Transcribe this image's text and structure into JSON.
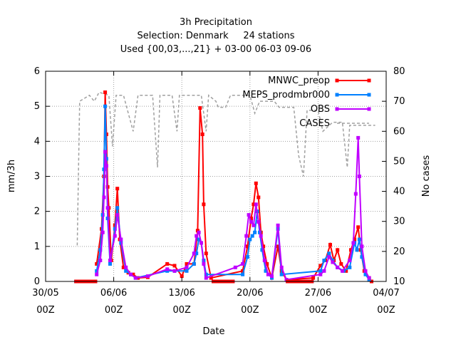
{
  "chart_data": {
    "type": "line",
    "title": [
      "3h Precipitation",
      "Selection: Denmark     24 stations",
      "Used {00,03,...,21} + 03-00 06-03 09-06"
    ],
    "xlabel": "Date",
    "ylabel": "mm/3h",
    "y2label": "No cases",
    "xlim": [
      "2022-05-30 00Z",
      "2022-07-04 00Z"
    ],
    "ylim": [
      0,
      6
    ],
    "y2lim": [
      10,
      80
    ],
    "xticks": [
      {
        "date": "2022-05-30",
        "l1": "30/05",
        "l2": "00Z"
      },
      {
        "date": "2022-06-06",
        "l1": "06/06",
        "l2": "00Z"
      },
      {
        "date": "2022-06-13",
        "l1": "13/06",
        "l2": "00Z"
      },
      {
        "date": "2022-06-20",
        "l1": "20/06",
        "l2": "00Z"
      },
      {
        "date": "2022-06-27",
        "l1": "27/06",
        "l2": "00Z"
      },
      {
        "date": "2022-07-04",
        "l1": "04/07",
        "l2": "00Z"
      }
    ],
    "yticks": [
      "0",
      "1",
      "2",
      "3",
      "4",
      "5",
      "6"
    ],
    "y2ticks": [
      "10",
      "20",
      "30",
      "40",
      "50",
      "60",
      "70",
      "80"
    ],
    "grid": true,
    "legend_position": "top-right",
    "series": [
      {
        "name": "MNWC_preop",
        "color": "#ff0000",
        "marker": "square",
        "axis": "left",
        "points": [
          [
            "2022-06-04 06Z",
            0.5
          ],
          [
            "2022-06-04 18Z",
            1.5
          ],
          [
            "2022-06-05 00Z",
            3.0
          ],
          [
            "2022-06-05 03Z",
            5.4
          ],
          [
            "2022-06-05 06Z",
            4.2
          ],
          [
            "2022-06-05 09Z",
            2.7
          ],
          [
            "2022-06-05 12Z",
            2.1
          ],
          [
            "2022-06-05 18Z",
            0.6
          ],
          [
            "2022-06-06 03Z",
            1.6
          ],
          [
            "2022-06-06 09Z",
            2.65
          ],
          [
            "2022-06-06 15Z",
            1.2
          ],
          [
            "2022-06-07 00Z",
            0.4
          ],
          [
            "2022-06-07 12Z",
            0.25
          ],
          [
            "2022-06-08 00Z",
            0.2
          ],
          [
            "2022-06-08 12Z",
            0.1
          ],
          [
            "2022-06-09 12Z",
            0.12
          ],
          [
            "2022-06-11 12Z",
            0.5
          ],
          [
            "2022-06-12 06Z",
            0.45
          ],
          [
            "2022-06-13 00Z",
            0.15
          ],
          [
            "2022-06-13 12Z",
            0.5
          ],
          [
            "2022-06-14 06Z",
            0.5
          ],
          [
            "2022-06-14 15Z",
            1.45
          ],
          [
            "2022-06-14 21Z",
            4.95
          ],
          [
            "2022-06-15 03Z",
            4.2
          ],
          [
            "2022-06-15 06Z",
            2.2
          ],
          [
            "2022-06-15 12Z",
            0.8
          ],
          [
            "2022-06-16 00Z",
            0.1
          ],
          [
            "2022-06-19 06Z",
            0.3
          ],
          [
            "2022-06-19 18Z",
            1.0
          ],
          [
            "2022-06-20 03Z",
            1.8
          ],
          [
            "2022-06-20 09Z",
            2.2
          ],
          [
            "2022-06-20 15Z",
            2.8
          ],
          [
            "2022-06-20 21Z",
            2.4
          ],
          [
            "2022-06-21 03Z",
            1.4
          ],
          [
            "2022-06-21 09Z",
            1.0
          ],
          [
            "2022-06-21 18Z",
            0.5
          ],
          [
            "2022-06-22 06Z",
            0.1
          ],
          [
            "2022-06-22 21Z",
            1.0
          ],
          [
            "2022-06-23 06Z",
            0.3
          ],
          [
            "2022-06-23 18Z",
            0.05
          ],
          [
            "2022-06-26 12Z",
            0.1
          ],
          [
            "2022-06-27 06Z",
            0.45
          ],
          [
            "2022-06-27 18Z",
            0.6
          ],
          [
            "2022-06-28 06Z",
            1.05
          ],
          [
            "2022-06-28 15Z",
            0.6
          ],
          [
            "2022-06-29 00Z",
            0.9
          ],
          [
            "2022-06-29 09Z",
            0.5
          ],
          [
            "2022-06-29 21Z",
            0.3
          ],
          [
            "2022-06-30 09Z",
            0.9
          ],
          [
            "2022-06-30 18Z",
            1.2
          ],
          [
            "2022-07-01 03Z",
            1.55
          ],
          [
            "2022-07-01 09Z",
            0.9
          ],
          [
            "2022-07-01 18Z",
            0.3
          ],
          [
            "2022-07-02 06Z",
            0.1
          ],
          [
            "2022-07-02 12Z",
            0.0
          ]
        ]
      },
      {
        "name": "MEPS_prodmbr000",
        "color": "#0080ff",
        "marker": "square",
        "axis": "left",
        "points": [
          [
            "2022-06-04 06Z",
            0.3
          ],
          [
            "2022-06-04 15Z",
            0.9
          ],
          [
            "2022-06-04 21Z",
            1.9
          ],
          [
            "2022-06-05 00Z",
            3.2
          ],
          [
            "2022-06-05 03Z",
            5.0
          ],
          [
            "2022-06-05 06Z",
            3.5
          ],
          [
            "2022-06-05 09Z",
            1.8
          ],
          [
            "2022-06-05 15Z",
            0.5
          ],
          [
            "2022-06-06 03Z",
            1.5
          ],
          [
            "2022-06-06 09Z",
            2.1
          ],
          [
            "2022-06-06 18Z",
            1.1
          ],
          [
            "2022-06-07 06Z",
            0.3
          ],
          [
            "2022-06-07 18Z",
            0.2
          ],
          [
            "2022-06-08 06Z",
            0.1
          ],
          [
            "2022-06-11 12Z",
            0.3
          ],
          [
            "2022-06-12 06Z",
            0.3
          ],
          [
            "2022-06-13 12Z",
            0.3
          ],
          [
            "2022-06-14 06Z",
            0.5
          ],
          [
            "2022-06-14 12Z",
            0.8
          ],
          [
            "2022-06-14 18Z",
            1.2
          ],
          [
            "2022-06-15 00Z",
            1.1
          ],
          [
            "2022-06-15 06Z",
            0.6
          ],
          [
            "2022-06-15 12Z",
            0.2
          ],
          [
            "2022-06-19 06Z",
            0.2
          ],
          [
            "2022-06-19 18Z",
            0.7
          ],
          [
            "2022-06-20 00Z",
            1.2
          ],
          [
            "2022-06-20 06Z",
            1.3
          ],
          [
            "2022-06-20 12Z",
            1.4
          ],
          [
            "2022-06-20 18Z",
            2.0
          ],
          [
            "2022-06-21 00Z",
            1.4
          ],
          [
            "2022-06-21 06Z",
            0.9
          ],
          [
            "2022-06-21 15Z",
            0.3
          ],
          [
            "2022-06-22 06Z",
            0.1
          ],
          [
            "2022-06-22 21Z",
            1.5
          ],
          [
            "2022-06-23 06Z",
            0.2
          ],
          [
            "2022-06-27 06Z",
            0.3
          ],
          [
            "2022-06-27 15Z",
            0.6
          ],
          [
            "2022-06-28 03Z",
            0.8
          ],
          [
            "2022-06-28 12Z",
            0.6
          ],
          [
            "2022-06-29 00Z",
            0.4
          ],
          [
            "2022-06-29 15Z",
            0.3
          ],
          [
            "2022-06-30 06Z",
            0.4
          ],
          [
            "2022-06-30 18Z",
            1.1
          ],
          [
            "2022-07-01 00Z",
            0.9
          ],
          [
            "2022-07-01 06Z",
            1.2
          ],
          [
            "2022-07-01 12Z",
            0.7
          ],
          [
            "2022-07-01 21Z",
            0.2
          ],
          [
            "2022-07-02 06Z",
            0.05
          ]
        ]
      },
      {
        "name": "OBS",
        "color": "#c000ff",
        "marker": "square",
        "axis": "left",
        "points": [
          [
            "2022-06-04 06Z",
            0.2
          ],
          [
            "2022-06-04 15Z",
            0.6
          ],
          [
            "2022-06-04 21Z",
            1.4
          ],
          [
            "2022-06-05 00Z",
            2.4
          ],
          [
            "2022-06-05 03Z",
            3.7
          ],
          [
            "2022-06-05 06Z",
            3.3
          ],
          [
            "2022-06-05 09Z",
            2.1
          ],
          [
            "2022-06-05 15Z",
            0.6
          ],
          [
            "2022-06-06 03Z",
            1.3
          ],
          [
            "2022-06-06 09Z",
            1.9
          ],
          [
            "2022-06-06 18Z",
            1.2
          ],
          [
            "2022-06-07 06Z",
            0.4
          ],
          [
            "2022-06-07 18Z",
            0.2
          ],
          [
            "2022-06-08 06Z",
            0.1
          ],
          [
            "2022-06-09 12Z",
            0.15
          ],
          [
            "2022-06-11 12Z",
            0.35
          ],
          [
            "2022-06-12 06Z",
            0.3
          ],
          [
            "2022-06-13 12Z",
            0.4
          ],
          [
            "2022-06-14 06Z",
            0.8
          ],
          [
            "2022-06-14 12Z",
            1.3
          ],
          [
            "2022-06-14 18Z",
            1.4
          ],
          [
            "2022-06-15 00Z",
            1.1
          ],
          [
            "2022-06-15 06Z",
            0.5
          ],
          [
            "2022-06-15 12Z",
            0.1
          ],
          [
            "2022-06-18 12Z",
            0.4
          ],
          [
            "2022-06-19 06Z",
            0.5
          ],
          [
            "2022-06-19 15Z",
            1.3
          ],
          [
            "2022-06-19 21Z",
            1.9
          ],
          [
            "2022-06-20 03Z",
            1.7
          ],
          [
            "2022-06-20 09Z",
            1.6
          ],
          [
            "2022-06-20 15Z",
            2.2
          ],
          [
            "2022-06-20 21Z",
            1.7
          ],
          [
            "2022-06-21 03Z",
            1.3
          ],
          [
            "2022-06-21 12Z",
            0.6
          ],
          [
            "2022-06-21 21Z",
            0.2
          ],
          [
            "2022-06-22 06Z",
            0.15
          ],
          [
            "2022-06-22 21Z",
            1.6
          ],
          [
            "2022-06-23 06Z",
            0.4
          ],
          [
            "2022-06-23 18Z",
            0.05
          ],
          [
            "2022-06-27 06Z",
            0.2
          ],
          [
            "2022-06-27 15Z",
            0.3
          ],
          [
            "2022-06-28 03Z",
            0.7
          ],
          [
            "2022-06-28 12Z",
            0.55
          ],
          [
            "2022-06-29 00Z",
            0.4
          ],
          [
            "2022-06-29 12Z",
            0.3
          ],
          [
            "2022-06-30 06Z",
            0.6
          ],
          [
            "2022-06-30 15Z",
            1.1
          ],
          [
            "2022-06-30 21Z",
            2.5
          ],
          [
            "2022-07-01 03Z",
            4.1
          ],
          [
            "2022-07-01 06Z",
            3.0
          ],
          [
            "2022-07-01 12Z",
            1.0
          ],
          [
            "2022-07-01 21Z",
            0.3
          ],
          [
            "2022-07-02 06Z",
            0.1
          ]
        ]
      },
      {
        "name": "CASES",
        "color": "#a0a0a0",
        "dash": "4,3",
        "axis": "right",
        "points": [
          [
            "2022-06-02 06Z",
            22
          ],
          [
            "2022-06-02 12Z",
            70
          ],
          [
            "2022-06-03 12Z",
            72
          ],
          [
            "2022-06-04 00Z",
            70
          ],
          [
            "2022-06-04 12Z",
            73
          ],
          [
            "2022-06-05 12Z",
            72
          ],
          [
            "2022-06-05 21Z",
            55
          ],
          [
            "2022-06-06 06Z",
            72
          ],
          [
            "2022-06-07 00Z",
            72
          ],
          [
            "2022-06-08 00Z",
            60
          ],
          [
            "2022-06-08 12Z",
            72
          ],
          [
            "2022-06-10 00Z",
            72
          ],
          [
            "2022-06-10 12Z",
            48
          ],
          [
            "2022-06-10 18Z",
            72
          ],
          [
            "2022-06-12 00Z",
            72
          ],
          [
            "2022-06-12 12Z",
            60
          ],
          [
            "2022-06-12 18Z",
            72
          ],
          [
            "2022-06-15 00Z",
            72
          ],
          [
            "2022-06-15 12Z",
            60
          ],
          [
            "2022-06-15 18Z",
            72
          ],
          [
            "2022-06-16 12Z",
            70
          ],
          [
            "2022-06-16 18Z",
            68
          ],
          [
            "2022-06-17 12Z",
            68
          ],
          [
            "2022-06-18 00Z",
            72
          ],
          [
            "2022-06-20 00Z",
            72
          ],
          [
            "2022-06-20 12Z",
            66
          ],
          [
            "2022-06-21 00Z",
            70
          ],
          [
            "2022-06-22 12Z",
            70
          ],
          [
            "2022-06-23 00Z",
            68
          ],
          [
            "2022-06-24 12Z",
            68
          ],
          [
            "2022-06-25 00Z",
            52
          ],
          [
            "2022-06-25 12Z",
            45
          ],
          [
            "2022-06-25 21Z",
            67
          ],
          [
            "2022-06-27 00Z",
            67
          ],
          [
            "2022-06-27 12Z",
            60
          ],
          [
            "2022-06-28 12Z",
            63
          ],
          [
            "2022-06-29 12Z",
            63
          ],
          [
            "2022-06-30 00Z",
            48
          ],
          [
            "2022-06-30 06Z",
            62
          ],
          [
            "2022-07-01 00Z",
            62
          ],
          [
            "2022-07-02 00Z",
            62
          ],
          [
            "2022-07-02 21Z",
            62
          ]
        ]
      }
    ]
  }
}
